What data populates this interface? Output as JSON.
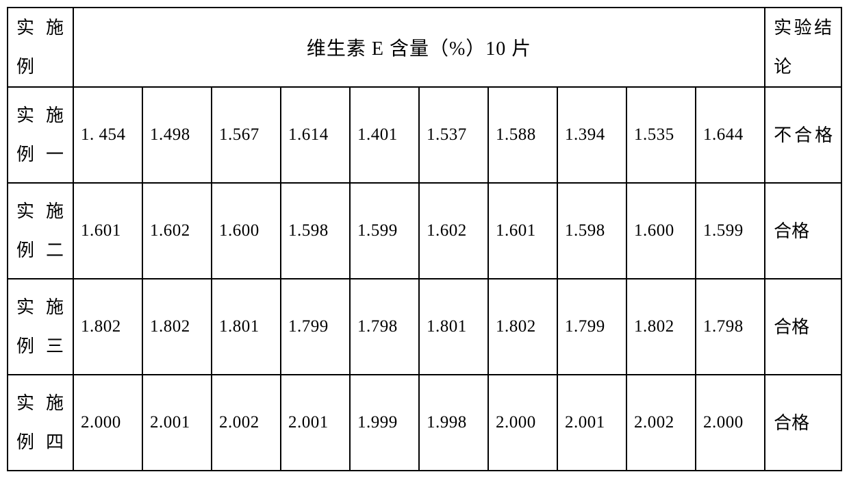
{
  "table": {
    "header": {
      "row_label": "实施例",
      "center_title": "维生素 E 含量（%）10 片",
      "result_label": "实验结论"
    },
    "columns": {
      "label_width": 96,
      "value_width": 101,
      "result_width": 112,
      "value_count": 10
    },
    "rows": [
      {
        "label": "实施例一",
        "values": [
          "1. 454",
          "1.498",
          "1.567",
          "1.614",
          "1.401",
          "1.537",
          "1.588",
          "1.394",
          "1.535",
          "1.644"
        ],
        "result": "不合格",
        "pass": false
      },
      {
        "label": "实施例二",
        "values": [
          "1.601",
          "1.602",
          "1.600",
          "1.598",
          "1.599",
          "1.602",
          "1.601",
          "1.598",
          "1.600",
          "1.599"
        ],
        "result": "合格",
        "pass": true
      },
      {
        "label": "实施例三",
        "values": [
          "1.802",
          "1.802",
          "1.801",
          "1.799",
          "1.798",
          "1.801",
          "1.802",
          "1.799",
          "1.802",
          "1.798"
        ],
        "result": "合格",
        "pass": true
      },
      {
        "label": "实施例四",
        "values": [
          "2.000",
          "2.001",
          "2.002",
          "2.001",
          "1.999",
          "1.998",
          "2.000",
          "2.001",
          "2.002",
          "2.000"
        ],
        "result": "合格",
        "pass": true
      }
    ],
    "style": {
      "border_color": "#000000",
      "border_width": 2,
      "background_color": "#ffffff",
      "text_color": "#000000",
      "header_fontsize": 28,
      "label_fontsize": 26,
      "value_fontsize": 25,
      "result_fontsize": 26,
      "font_family": "SimSun"
    }
  }
}
